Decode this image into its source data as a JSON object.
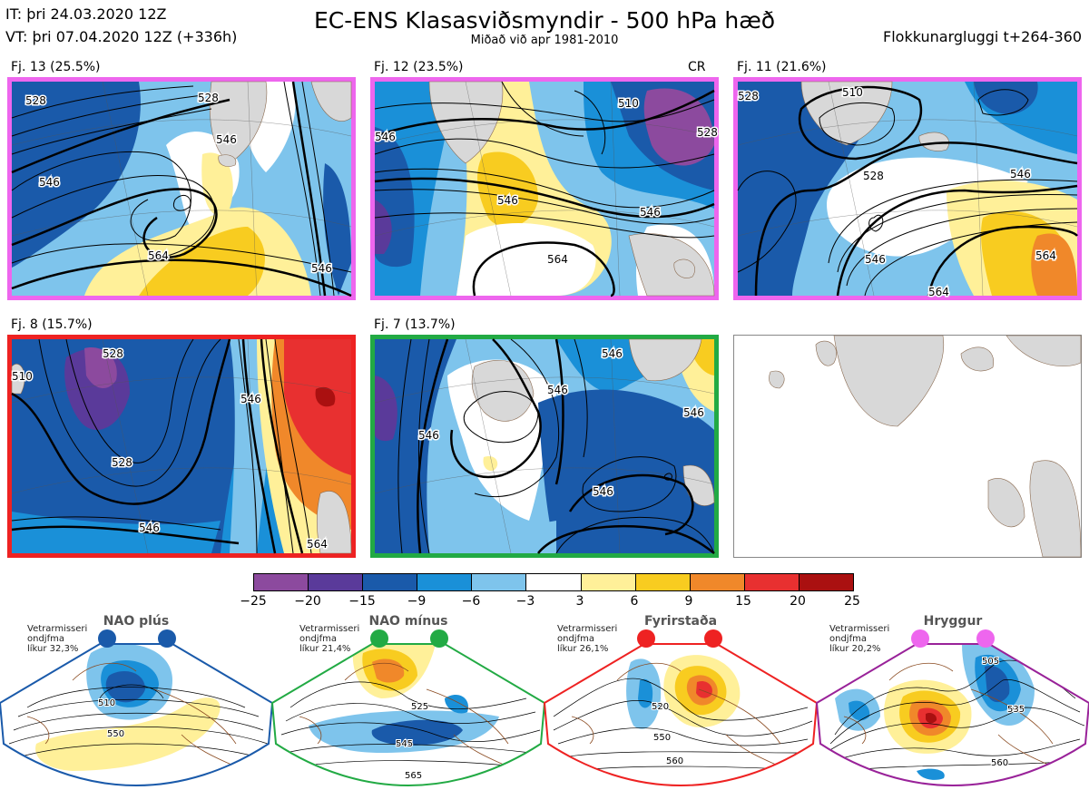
{
  "header": {
    "init_time": "IT: þri 24.03.2020 12Z",
    "valid_time": "VT: þri 07.04.2020 12Z",
    "lead": "(+336h)",
    "title": "EC-ENS Klasasviðsmyndir - 500 hPa hæð",
    "subtitle": "Miðað við apr 1981-2010",
    "window": "Flokkunargluggi t+264-360"
  },
  "clusters": [
    {
      "label": "Fj. 13 (25.5%)",
      "color": "#ee66ee"
    },
    {
      "label": "Fj. 12 (23.5%)",
      "color": "#ee66ee",
      "tag": "CR"
    },
    {
      "label": "Fj. 11 (21.6%)",
      "color": "#ee66ee"
    },
    {
      "label": "Fj. 8 (15.7%)",
      "color": "#ee2222"
    },
    {
      "label": "Fj. 7 (13.7%)",
      "color": "#22aa44"
    }
  ],
  "contours": {
    "c1": [
      "528",
      "546",
      "528",
      "546",
      "564",
      "546"
    ],
    "c2": [
      "510",
      "528",
      "546",
      "546",
      "564",
      "546"
    ],
    "c3": [
      "510",
      "528",
      "528",
      "546",
      "546",
      "564",
      "564"
    ],
    "c4": [
      "510",
      "528",
      "528",
      "546",
      "546",
      "564"
    ],
    "c5": [
      "546",
      "546",
      "546",
      "546",
      "546"
    ]
  },
  "colorbar": {
    "ticks": [
      "−25",
      "−20",
      "−15",
      "−9",
      "−6",
      "−3",
      "3",
      "6",
      "9",
      "15",
      "20",
      "25"
    ],
    "colors": [
      "#8c4a9e",
      "#5a3a9a",
      "#1a5aaa",
      "#1a90d8",
      "#7ec4ec",
      "#ffffff",
      "#fff099",
      "#f8cc20",
      "#f0882a",
      "#e83030",
      "#aa1010"
    ]
  },
  "regimes": [
    {
      "name": "NAO plús",
      "line1": "Vetrarmisseri",
      "line2": "ondjfma",
      "line3": "líkur 32,3%",
      "color": "#1a5aaa",
      "labels": [
        "510",
        "550"
      ]
    },
    {
      "name": "NAO mínus",
      "line1": "Vetrarmisseri",
      "line2": "ondjfma",
      "line3": "líkur 21,4%",
      "color": "#22aa44",
      "labels": [
        "525",
        "545",
        "565"
      ]
    },
    {
      "name": "Fyrirstaða",
      "line1": "Vetrarmisseri",
      "line2": "ondjfma",
      "line3": "líkur 26,1%",
      "color": "#ee2222",
      "labels": [
        "520",
        "550",
        "560"
      ]
    },
    {
      "name": "Hryggur",
      "line1": "Vetrarmisseri",
      "line2": "ondjfma",
      "line3": "líkur 20,2%",
      "color": "#992299",
      "labels": [
        "505",
        "535",
        "560"
      ]
    }
  ]
}
